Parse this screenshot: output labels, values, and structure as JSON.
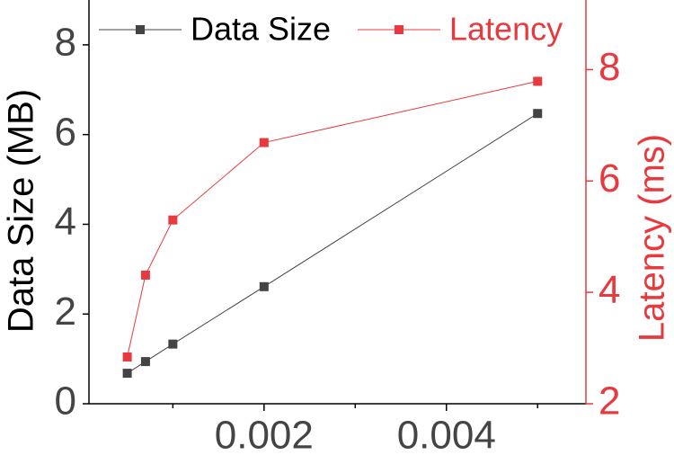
{
  "chart_data": {
    "type": "line",
    "x": [
      0.0005,
      0.0007,
      0.001,
      0.002,
      0.005
    ],
    "series": [
      {
        "name": "Data Size",
        "color": "#444444",
        "values": [
          0.68,
          0.94,
          1.33,
          2.61,
          6.47
        ]
      },
      {
        "name": "Latency",
        "color": "#e8393e",
        "axis": "y2",
        "values": [
          2.84,
          4.31,
          5.3,
          6.69,
          7.79
        ]
      }
    ],
    "y_label": "Data Size (MB)",
    "y2_label": "Latency (ms)",
    "xlim": [
      8e-05,
      0.00553
    ],
    "xticks": [
      0.002,
      0.004
    ],
    "xminor_ticks": [
      0.001,
      0.003,
      0.005
    ],
    "ylim": [
      0,
      9
    ],
    "yticks": [
      0,
      2,
      4,
      6,
      8
    ],
    "y2lim": [
      2,
      9.25
    ],
    "y2ticks": [
      2,
      4,
      6,
      8
    ],
    "legend": "top"
  }
}
